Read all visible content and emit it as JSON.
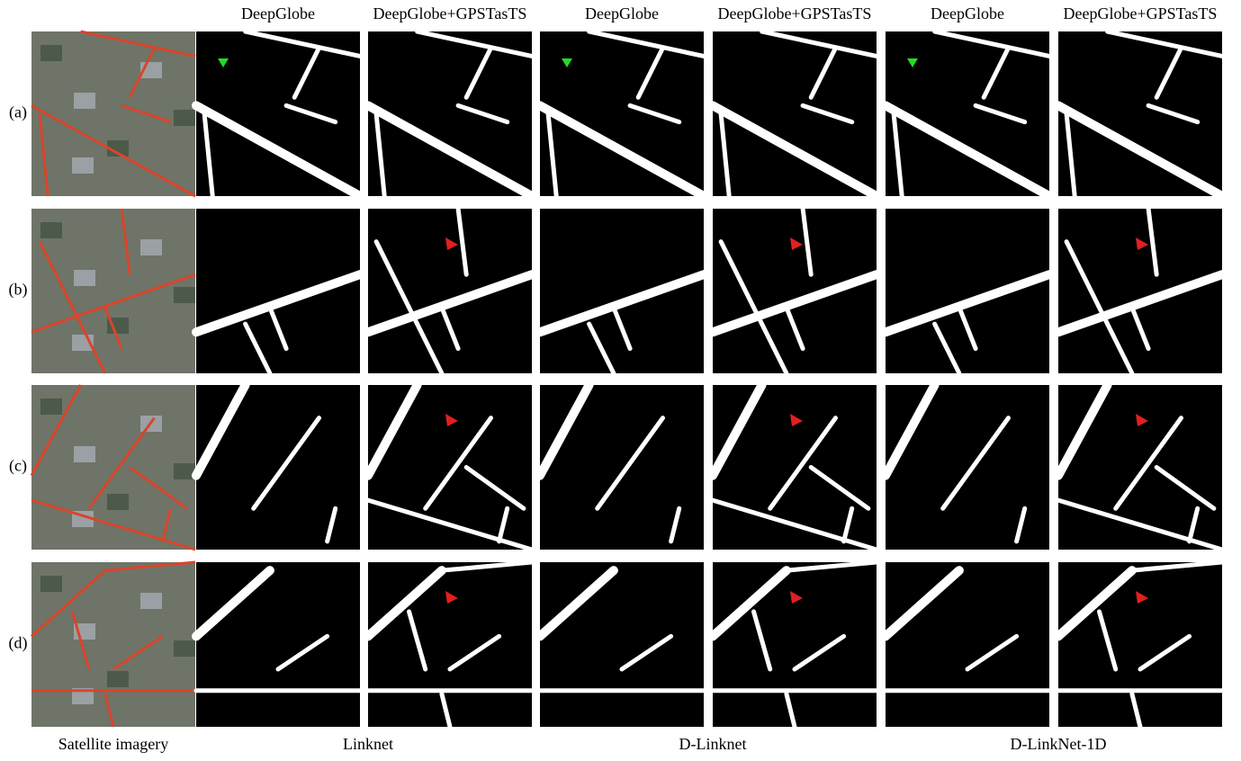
{
  "figure": {
    "column_headers": [
      "DeepGlobe",
      "DeepGlobe+GPSTasTS",
      "DeepGlobe",
      "DeepGlobe+GPSTasTS",
      "DeepGlobe",
      "DeepGlobe+GPSTasTS"
    ],
    "row_labels": [
      "(a)",
      "(b)",
      "(c)",
      "(d)"
    ],
    "bottom_labels": [
      "Satellite imagery",
      "Linknet",
      "D-Linknet",
      "D-LinkNet-1D"
    ]
  }
}
